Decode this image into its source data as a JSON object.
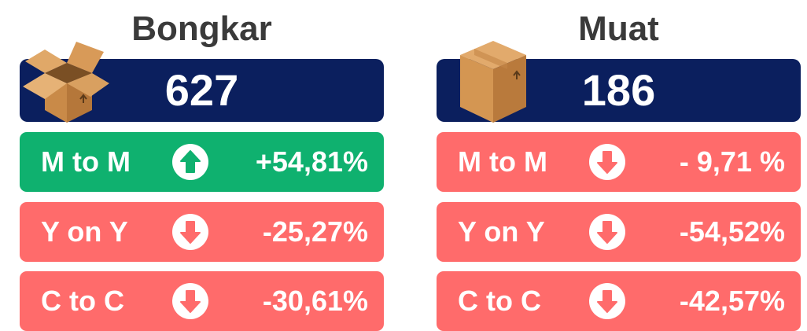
{
  "panels": [
    {
      "title": "Bongkar",
      "total": "627",
      "metrics": [
        {
          "label": "M to M",
          "value": "+54,81%",
          "direction": "up"
        },
        {
          "label": "Y on Y",
          "value": "-25,27%",
          "direction": "down"
        },
        {
          "label": "C to C",
          "value": "-30,61%",
          "direction": "down"
        }
      ]
    },
    {
      "title": "Muat",
      "total": "186",
      "metrics": [
        {
          "label": "M to M",
          "value": "- 9,71 %",
          "direction": "down"
        },
        {
          "label": "Y on Y",
          "value": "-54,52%",
          "direction": "down"
        },
        {
          "label": "C to C",
          "value": "-42,57%",
          "direction": "down"
        }
      ]
    }
  ]
}
